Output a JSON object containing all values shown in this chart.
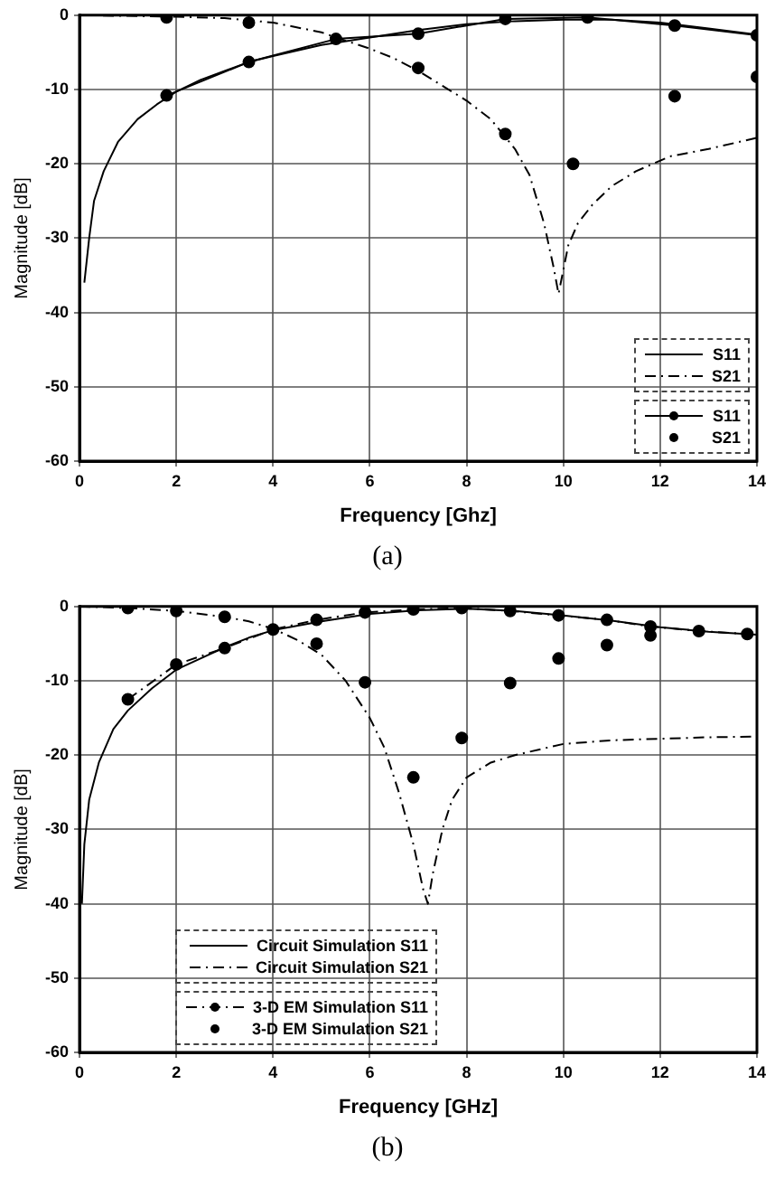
{
  "chart_data": [
    {
      "type": "line",
      "xlabel": "Frequency [Ghz]",
      "ylabel": "Magnitude [dB]",
      "annotations": [
        "(a)"
      ],
      "xlim": [
        0,
        14
      ],
      "ylim": [
        -60,
        0
      ],
      "xticks": [
        0,
        2,
        4,
        6,
        8,
        10,
        12,
        14
      ],
      "yticks": [
        -60,
        -50,
        -40,
        -30,
        -20,
        -10,
        0
      ],
      "grid": true,
      "legend": "bottom right",
      "series": [
        {
          "name": "S11",
          "type": "line",
          "color": "#000000",
          "marker": "none",
          "line_style": "solid",
          "x": [
            0.1,
            0.2,
            0.3,
            0.5,
            0.8,
            1.2,
            1.6,
            2,
            2.5,
            3,
            3.5,
            4,
            5,
            6,
            7,
            8,
            9,
            10,
            11,
            12,
            13,
            14
          ],
          "values": [
            -36,
            -30,
            -25,
            -21,
            -17,
            -14,
            -12,
            -10.3,
            -8.7,
            -7.5,
            -6.3,
            -5.5,
            -4,
            -3,
            -2,
            -1.2,
            -0.8,
            -0.6,
            -0.6,
            -1,
            -1.8,
            -2.6
          ]
        },
        {
          "name": "S21",
          "type": "line",
          "color": "#000000",
          "marker": "none",
          "line_style": "dashed",
          "x": [
            0,
            1,
            2,
            3,
            3.5,
            4,
            5,
            5.3,
            6,
            6.5,
            7,
            7.5,
            8,
            8.5,
            9,
            9.3,
            9.6,
            9.8,
            9.9,
            10.1,
            10.3,
            10.6,
            11,
            11.5,
            12.2,
            13,
            14
          ],
          "values": [
            0,
            -0.1,
            -0.2,
            -0.4,
            -0.7,
            -1,
            -2.3,
            -3,
            -4.5,
            -5.8,
            -7.5,
            -9.5,
            -11.5,
            -14,
            -18,
            -21.5,
            -28,
            -34,
            -37.5,
            -31,
            -28,
            -25.5,
            -23,
            -21,
            -19,
            -18,
            -16.5
          ]
        },
        {
          "name": "S11",
          "type": "line",
          "color": "#000000",
          "marker": "circle",
          "line_style": "solid",
          "x": [
            1.8,
            3.5,
            5.3,
            7,
            8.8,
            10.5,
            12.3,
            14
          ],
          "values": [
            -10.8,
            -6.3,
            -3.2,
            -2.5,
            -0.5,
            -0.3,
            -1.4,
            -2.7
          ]
        },
        {
          "name": "S21",
          "type": "scatter",
          "color": "#000000",
          "marker": "circle",
          "x": [
            1.8,
            3.5,
            7,
            8.8,
            10.2,
            12.3,
            14
          ],
          "values": [
            -0.3,
            -1,
            -7.1,
            -16,
            -20,
            -10.9,
            -8.3
          ]
        }
      ]
    },
    {
      "type": "line",
      "xlabel": "Frequency [GHz]",
      "ylabel": "Magnitude [dB]",
      "annotations": [
        "(b)"
      ],
      "xlim": [
        0,
        14
      ],
      "ylim": [
        -60,
        0
      ],
      "xticks": [
        0,
        2,
        4,
        6,
        8,
        10,
        12,
        14
      ],
      "yticks": [
        -60,
        -50,
        -40,
        -30,
        -20,
        -10,
        0
      ],
      "grid": true,
      "legend": "bottom left",
      "series": [
        {
          "name": "Circuit Simulation S11",
          "type": "line",
          "color": "#000000",
          "marker": "none",
          "line_style": "solid",
          "x": [
            0.05,
            0.1,
            0.2,
            0.4,
            0.7,
            1,
            1.5,
            2,
            2.5,
            3,
            3.5,
            4,
            5,
            6,
            7,
            8,
            9,
            10,
            11,
            12,
            13,
            14
          ],
          "values": [
            -40,
            -32,
            -26,
            -21,
            -16.5,
            -14,
            -11,
            -8.5,
            -7,
            -5.5,
            -4.2,
            -3.2,
            -2,
            -1,
            -0.5,
            -0.3,
            -0.6,
            -1.2,
            -1.9,
            -2.8,
            -3.4,
            -3.8
          ]
        },
        {
          "name": "Circuit Simulation S21",
          "type": "line",
          "color": "#000000",
          "marker": "none",
          "line_style": "dashed",
          "x": [
            0,
            1,
            2,
            3,
            3.5,
            4,
            4.5,
            5,
            5.5,
            6,
            6.3,
            6.6,
            6.9,
            7.1,
            7.2,
            7.3,
            7.5,
            7.7,
            8,
            8.5,
            9,
            10,
            11,
            12,
            13,
            14
          ],
          "values": [
            0,
            -0.2,
            -0.6,
            -1.4,
            -2,
            -3,
            -4.5,
            -6.5,
            -10,
            -15,
            -19,
            -25,
            -32,
            -38,
            -40,
            -36,
            -30,
            -26,
            -23,
            -21,
            -20,
            -18.5,
            -18,
            -17.8,
            -17.6,
            -17.5
          ]
        },
        {
          "name": "3-D EM Simulation S11",
          "type": "line",
          "color": "#000000",
          "marker": "circle",
          "line_style": "dashed",
          "x": [
            1,
            2,
            3,
            4,
            4.9,
            5.9,
            6.9,
            7.9,
            8.9,
            9.9,
            10.9,
            11.8,
            12.8,
            13.8
          ],
          "values": [
            -12.5,
            -7.8,
            -5.6,
            -3.1,
            -1.8,
            -0.8,
            -0.4,
            -0.2,
            -0.6,
            -1.2,
            -1.8,
            -2.7,
            -3.3,
            -3.7
          ]
        },
        {
          "name": "3-D EM Simulation S21",
          "type": "scatter",
          "color": "#000000",
          "marker": "circle",
          "x": [
            1,
            2,
            3,
            4,
            4.9,
            5.9,
            6.9,
            7.9,
            8.9,
            9.9,
            10.9,
            11.8
          ],
          "values": [
            -0.2,
            -0.6,
            -1.4,
            null,
            -5,
            -10.2,
            -23,
            -17.7,
            -10.3,
            -7,
            -5.2,
            -3.9
          ]
        }
      ]
    }
  ]
}
